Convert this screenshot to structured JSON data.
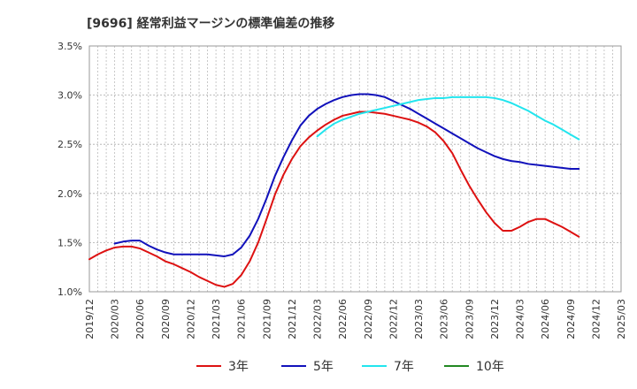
{
  "chart_data": {
    "type": "line",
    "title": "[9696]  経常利益マージンの標準偏差の推移",
    "xlabel": "",
    "ylabel": "",
    "ylim": [
      1.0,
      3.5
    ],
    "y_unit": "%",
    "y_ticks": [
      1.0,
      1.5,
      2.0,
      2.5,
      3.0,
      3.5
    ],
    "y_tick_labels": [
      "1.0%",
      "1.5%",
      "2.0%",
      "2.5%",
      "3.0%",
      "3.5%"
    ],
    "x_range": [
      "2019-12",
      "2025-03"
    ],
    "x_tick_labels": [
      "2019/12",
      "2020/03",
      "2020/06",
      "2020/09",
      "2020/12",
      "2021/03",
      "2021/06",
      "2021/09",
      "2021/12",
      "2022/03",
      "2022/06",
      "2022/09",
      "2022/12",
      "2023/03",
      "2023/06",
      "2023/09",
      "2023/12",
      "2024/03",
      "2024/06",
      "2024/09",
      "2024/12",
      "2025/03"
    ],
    "grid": true,
    "legend_position": "bottom",
    "series": [
      {
        "name": "3年",
        "color": "#dd1111",
        "points": [
          [
            "2019-12",
            1.33
          ],
          [
            "2020-01",
            1.38
          ],
          [
            "2020-02",
            1.42
          ],
          [
            "2020-03",
            1.45
          ],
          [
            "2020-04",
            1.46
          ],
          [
            "2020-05",
            1.46
          ],
          [
            "2020-06",
            1.44
          ],
          [
            "2020-07",
            1.4
          ],
          [
            "2020-08",
            1.36
          ],
          [
            "2020-09",
            1.31
          ],
          [
            "2020-10",
            1.28
          ],
          [
            "2020-11",
            1.24
          ],
          [
            "2020-12",
            1.2
          ],
          [
            "2021-01",
            1.15
          ],
          [
            "2021-02",
            1.11
          ],
          [
            "2021-03",
            1.07
          ],
          [
            "2021-04",
            1.05
          ],
          [
            "2021-05",
            1.08
          ],
          [
            "2021-06",
            1.17
          ],
          [
            "2021-07",
            1.31
          ],
          [
            "2021-08",
            1.5
          ],
          [
            "2021-09",
            1.74
          ],
          [
            "2021-10",
            1.99
          ],
          [
            "2021-11",
            2.19
          ],
          [
            "2021-12",
            2.35
          ],
          [
            "2022-01",
            2.48
          ],
          [
            "2022-02",
            2.57
          ],
          [
            "2022-03",
            2.64
          ],
          [
            "2022-04",
            2.7
          ],
          [
            "2022-05",
            2.75
          ],
          [
            "2022-06",
            2.79
          ],
          [
            "2022-07",
            2.81
          ],
          [
            "2022-08",
            2.83
          ],
          [
            "2022-09",
            2.83
          ],
          [
            "2022-10",
            2.82
          ],
          [
            "2022-11",
            2.81
          ],
          [
            "2022-12",
            2.79
          ],
          [
            "2023-01",
            2.77
          ],
          [
            "2023-02",
            2.75
          ],
          [
            "2023-03",
            2.72
          ],
          [
            "2023-04",
            2.68
          ],
          [
            "2023-05",
            2.62
          ],
          [
            "2023-06",
            2.53
          ],
          [
            "2023-07",
            2.41
          ],
          [
            "2023-08",
            2.24
          ],
          [
            "2023-09",
            2.08
          ],
          [
            "2023-10",
            1.94
          ],
          [
            "2023-11",
            1.81
          ],
          [
            "2023-12",
            1.7
          ],
          [
            "2024-01",
            1.62
          ],
          [
            "2024-02",
            1.62
          ],
          [
            "2024-03",
            1.66
          ],
          [
            "2024-04",
            1.71
          ],
          [
            "2024-05",
            1.74
          ],
          [
            "2024-06",
            1.74
          ],
          [
            "2024-07",
            1.7
          ],
          [
            "2024-08",
            1.66
          ],
          [
            "2024-09",
            1.61
          ],
          [
            "2024-10",
            1.56
          ]
        ]
      },
      {
        "name": "5年",
        "color": "#1111bb",
        "points": [
          [
            "2020-03",
            1.49
          ],
          [
            "2020-04",
            1.51
          ],
          [
            "2020-05",
            1.52
          ],
          [
            "2020-06",
            1.52
          ],
          [
            "2020-07",
            1.47
          ],
          [
            "2020-08",
            1.43
          ],
          [
            "2020-09",
            1.4
          ],
          [
            "2020-10",
            1.38
          ],
          [
            "2020-11",
            1.38
          ],
          [
            "2020-12",
            1.38
          ],
          [
            "2021-01",
            1.38
          ],
          [
            "2021-02",
            1.38
          ],
          [
            "2021-03",
            1.37
          ],
          [
            "2021-04",
            1.36
          ],
          [
            "2021-05",
            1.38
          ],
          [
            "2021-06",
            1.45
          ],
          [
            "2021-07",
            1.57
          ],
          [
            "2021-08",
            1.74
          ],
          [
            "2021-09",
            1.95
          ],
          [
            "2021-10",
            2.18
          ],
          [
            "2021-11",
            2.37
          ],
          [
            "2021-12",
            2.54
          ],
          [
            "2022-01",
            2.69
          ],
          [
            "2022-02",
            2.79
          ],
          [
            "2022-03",
            2.86
          ],
          [
            "2022-04",
            2.91
          ],
          [
            "2022-05",
            2.95
          ],
          [
            "2022-06",
            2.98
          ],
          [
            "2022-07",
            3.0
          ],
          [
            "2022-08",
            3.01
          ],
          [
            "2022-09",
            3.01
          ],
          [
            "2022-10",
            3.0
          ],
          [
            "2022-11",
            2.98
          ],
          [
            "2022-12",
            2.94
          ],
          [
            "2023-01",
            2.9
          ],
          [
            "2023-02",
            2.86
          ],
          [
            "2023-03",
            2.81
          ],
          [
            "2023-04",
            2.76
          ],
          [
            "2023-05",
            2.71
          ],
          [
            "2023-06",
            2.66
          ],
          [
            "2023-07",
            2.61
          ],
          [
            "2023-08",
            2.56
          ],
          [
            "2023-09",
            2.51
          ],
          [
            "2023-10",
            2.46
          ],
          [
            "2023-11",
            2.42
          ],
          [
            "2023-12",
            2.38
          ],
          [
            "2024-01",
            2.35
          ],
          [
            "2024-02",
            2.33
          ],
          [
            "2024-03",
            2.32
          ],
          [
            "2024-04",
            2.3
          ],
          [
            "2024-05",
            2.29
          ],
          [
            "2024-06",
            2.28
          ],
          [
            "2024-07",
            2.27
          ],
          [
            "2024-08",
            2.26
          ],
          [
            "2024-09",
            2.25
          ],
          [
            "2024-10",
            2.25
          ]
        ]
      },
      {
        "name": "7年",
        "color": "#22e5ee",
        "points": [
          [
            "2022-03",
            2.58
          ],
          [
            "2022-04",
            2.65
          ],
          [
            "2022-05",
            2.71
          ],
          [
            "2022-06",
            2.75
          ],
          [
            "2022-07",
            2.78
          ],
          [
            "2022-08",
            2.81
          ],
          [
            "2022-09",
            2.83
          ],
          [
            "2022-10",
            2.85
          ],
          [
            "2022-11",
            2.87
          ],
          [
            "2022-12",
            2.89
          ],
          [
            "2023-01",
            2.91
          ],
          [
            "2023-02",
            2.93
          ],
          [
            "2023-03",
            2.95
          ],
          [
            "2023-04",
            2.96
          ],
          [
            "2023-05",
            2.97
          ],
          [
            "2023-06",
            2.97
          ],
          [
            "2023-07",
            2.98
          ],
          [
            "2023-08",
            2.98
          ],
          [
            "2023-09",
            2.98
          ],
          [
            "2023-10",
            2.98
          ],
          [
            "2023-11",
            2.98
          ],
          [
            "2023-12",
            2.97
          ],
          [
            "2024-01",
            2.95
          ],
          [
            "2024-02",
            2.92
          ],
          [
            "2024-03",
            2.88
          ],
          [
            "2024-04",
            2.84
          ],
          [
            "2024-05",
            2.79
          ],
          [
            "2024-06",
            2.74
          ],
          [
            "2024-07",
            2.7
          ],
          [
            "2024-08",
            2.65
          ],
          [
            "2024-09",
            2.6
          ],
          [
            "2024-10",
            2.55
          ]
        ]
      },
      {
        "name": "10年",
        "color": "#228822",
        "points": []
      }
    ]
  }
}
